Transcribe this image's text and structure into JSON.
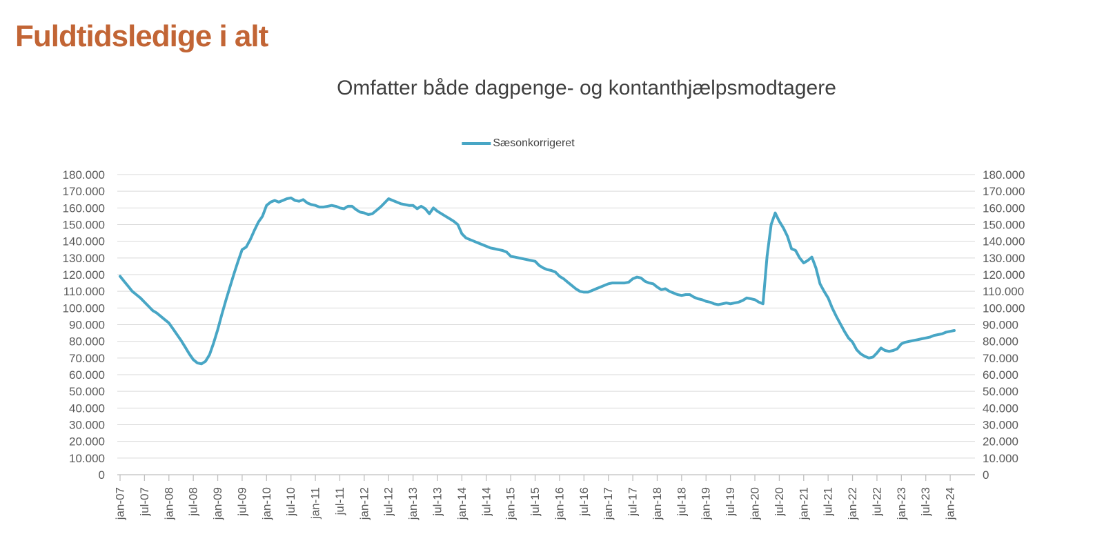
{
  "page": {
    "title": "Fuldtidsledige i alt"
  },
  "colors": {
    "page_title": "#C26535",
    "chart_title_text": "#404040",
    "series_line": "#48A6C5",
    "gridline": "#D9D9D9",
    "axis_line": "#BFBFBF",
    "tick_label_text": "#595959"
  },
  "chart_data": {
    "type": "line",
    "title": "Omfatter både dagpenge- og kontanthjælpsmodtagere",
    "legend_label": "Sæsonkorrigeret",
    "legend_position": "top-center",
    "grid": "horizontal-only",
    "y_axis": {
      "min": 0,
      "max": 180000,
      "step": 10000,
      "sides": "both"
    },
    "x_range": {
      "start": "jan-07",
      "end": "feb-24",
      "frequency": "monthly"
    },
    "y_tick_labels": [
      "180.000",
      "170.000",
      "160.000",
      "150.000",
      "140.000",
      "130.000",
      "120.000",
      "110.000",
      "100.000",
      "90.000",
      "80.000",
      "70.000",
      "60.000",
      "50.000",
      "40.000",
      "30.000",
      "20.000",
      "10.000",
      "0"
    ],
    "x_tick_labels": [
      "jan-07",
      "jul-07",
      "jan-08",
      "jul-08",
      "jan-09",
      "jul-09",
      "jan-10",
      "jul-10",
      "jan-11",
      "jul-11",
      "jan-12",
      "jul-12",
      "jan-13",
      "jul-13",
      "jan-14",
      "jul-14",
      "jan-15",
      "jul-15",
      "jan-16",
      "jul-16",
      "jan-17",
      "jul-17",
      "jan-18",
      "jul-18",
      "jan-19",
      "jul-19",
      "jan-20",
      "jul-20",
      "jan-21",
      "jul-21",
      "jan-22",
      "jul-22",
      "jan-23",
      "jul-23",
      "jan-24"
    ],
    "x_tick_every_n_points": 6,
    "series": [
      {
        "name": "Sæsonkorrigeret",
        "color": "#48A6C5",
        "values": [
          119000,
          116000,
          113000,
          110000,
          108000,
          106000,
          103500,
          101000,
          98500,
          97000,
          95000,
          93000,
          91000,
          87500,
          84000,
          80500,
          76500,
          72500,
          69000,
          67000,
          66500,
          68000,
          72000,
          79000,
          87000,
          96000,
          104500,
          112500,
          120500,
          128000,
          135000,
          136500,
          141000,
          146500,
          151500,
          155000,
          161500,
          163500,
          164500,
          163500,
          164500,
          165500,
          166000,
          164500,
          164000,
          165000,
          163000,
          162000,
          161500,
          160500,
          160500,
          161000,
          161500,
          161000,
          160000,
          159500,
          161000,
          161000,
          159000,
          157500,
          157000,
          156000,
          156500,
          158500,
          160500,
          163000,
          165500,
          164500,
          163500,
          162500,
          162000,
          161500,
          161500,
          159500,
          161000,
          159500,
          156500,
          160000,
          158000,
          156500,
          155000,
          153500,
          152000,
          150000,
          144500,
          142000,
          141000,
          140000,
          139000,
          138000,
          137000,
          136000,
          135500,
          135000,
          134500,
          133500,
          131000,
          130500,
          130000,
          129500,
          129000,
          128500,
          128000,
          125500,
          124000,
          123000,
          122500,
          121500,
          119000,
          117500,
          115500,
          113500,
          111500,
          110000,
          109500,
          109500,
          110500,
          111500,
          112500,
          113500,
          114500,
          115000,
          115000,
          115000,
          115000,
          115500,
          117500,
          118500,
          118000,
          116000,
          115000,
          114500,
          112500,
          111000,
          111500,
          110000,
          109000,
          108000,
          107500,
          108000,
          108000,
          106500,
          105500,
          105000,
          104000,
          103500,
          102500,
          102000,
          102500,
          103000,
          102500,
          103000,
          103500,
          104500,
          106000,
          105500,
          105000,
          103500,
          102500,
          131000,
          150000,
          157000,
          152000,
          148000,
          143000,
          135500,
          134500,
          130000,
          127000,
          128500,
          130500,
          124000,
          114500,
          110000,
          106000,
          100000,
          95000,
          90500,
          86000,
          82000,
          79500,
          75000,
          72500,
          71000,
          70000,
          70500,
          73000,
          76000,
          74500,
          74000,
          74500,
          75500,
          78500,
          79500,
          80000,
          80500,
          81000,
          81500,
          82000,
          82500,
          83500,
          84000,
          84500,
          85500,
          86000,
          86500
        ]
      }
    ]
  }
}
